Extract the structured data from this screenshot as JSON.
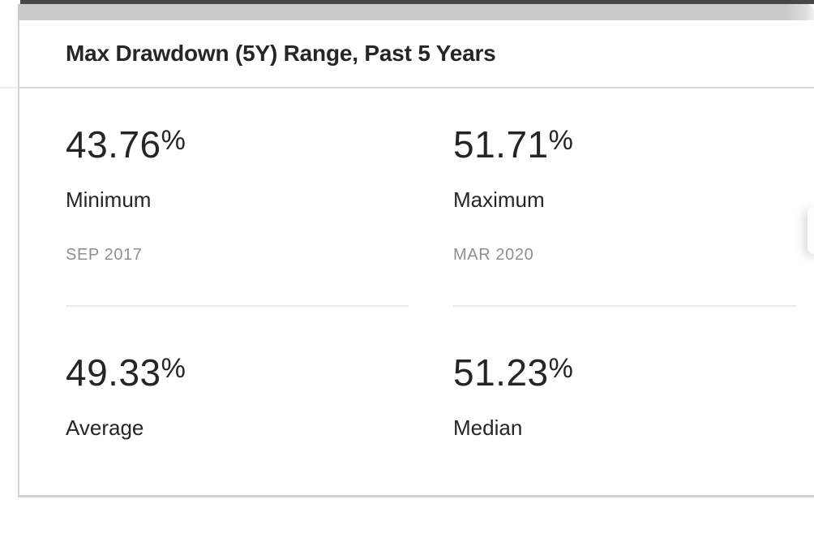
{
  "card": {
    "title": "Max Drawdown (5Y) Range, Past 5 Years"
  },
  "stats": [
    {
      "value": "43.76",
      "unit": "%",
      "label": "Minimum",
      "date": "SEP 2017"
    },
    {
      "value": "51.71",
      "unit": "%",
      "label": "Maximum",
      "date": "MAR 2020"
    },
    {
      "value": "49.33",
      "unit": "%",
      "label": "Average"
    },
    {
      "value": "51.23",
      "unit": "%",
      "label": "Median"
    }
  ],
  "colors": {
    "text_primary": "#252525",
    "text_muted": "#8f8f8f",
    "divider": "#e9e9e9",
    "card_border": "#d4d4d4",
    "top_strip": "#cacaca",
    "top_bar": "#474747"
  }
}
